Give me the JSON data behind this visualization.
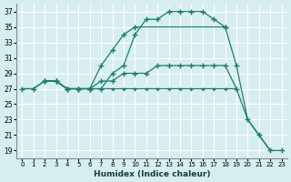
{
  "xlabel": "Humidex (Indice chaleur)",
  "background_color": "#d6eef0",
  "grid_color": "#ffffff",
  "line_color": "#1a7f6e",
  "xlim": [
    -0.5,
    23.5
  ],
  "ylim": [
    18,
    38
  ],
  "xticks": [
    0,
    1,
    2,
    3,
    4,
    5,
    6,
    7,
    8,
    9,
    10,
    11,
    12,
    13,
    14,
    15,
    16,
    17,
    18,
    19,
    20,
    21,
    22,
    23
  ],
  "yticks": [
    19,
    21,
    23,
    25,
    27,
    29,
    31,
    33,
    35,
    37
  ],
  "series": [
    {
      "x": [
        0,
        1,
        2,
        3,
        4,
        5,
        6,
        7,
        8,
        9,
        10,
        11,
        12,
        13,
        14,
        15,
        16,
        17,
        18
      ],
      "y": [
        27,
        27,
        28,
        28,
        27,
        27,
        27,
        27,
        29,
        30,
        34,
        36,
        36,
        37,
        37,
        37,
        37,
        36,
        35
      ]
    },
    {
      "x": [
        2,
        3,
        4,
        5,
        6,
        7,
        8,
        9,
        10,
        11,
        12,
        13,
        14,
        15,
        16,
        17,
        18,
        19
      ],
      "y": [
        28,
        28,
        27,
        27,
        27,
        28,
        28,
        29,
        29,
        29,
        30,
        30,
        30,
        30,
        30,
        30,
        30,
        27
      ]
    },
    {
      "x": [
        0,
        1,
        2,
        3,
        4,
        5,
        6,
        7,
        8,
        9,
        10,
        11,
        12,
        13,
        14,
        15,
        16,
        17,
        18,
        19,
        20,
        21,
        22
      ],
      "y": [
        27,
        27,
        28,
        28,
        27,
        27,
        27,
        27,
        27,
        27,
        27,
        27,
        27,
        27,
        27,
        27,
        27,
        27,
        27,
        27,
        23,
        21,
        19
      ]
    },
    {
      "x": [
        2,
        3,
        4,
        5,
        6,
        7,
        8,
        9,
        10,
        18,
        19,
        20,
        21,
        22,
        23
      ],
      "y": [
        28,
        28,
        27,
        27,
        27,
        30,
        32,
        34,
        35,
        35,
        30,
        23,
        21,
        19,
        19
      ]
    }
  ]
}
